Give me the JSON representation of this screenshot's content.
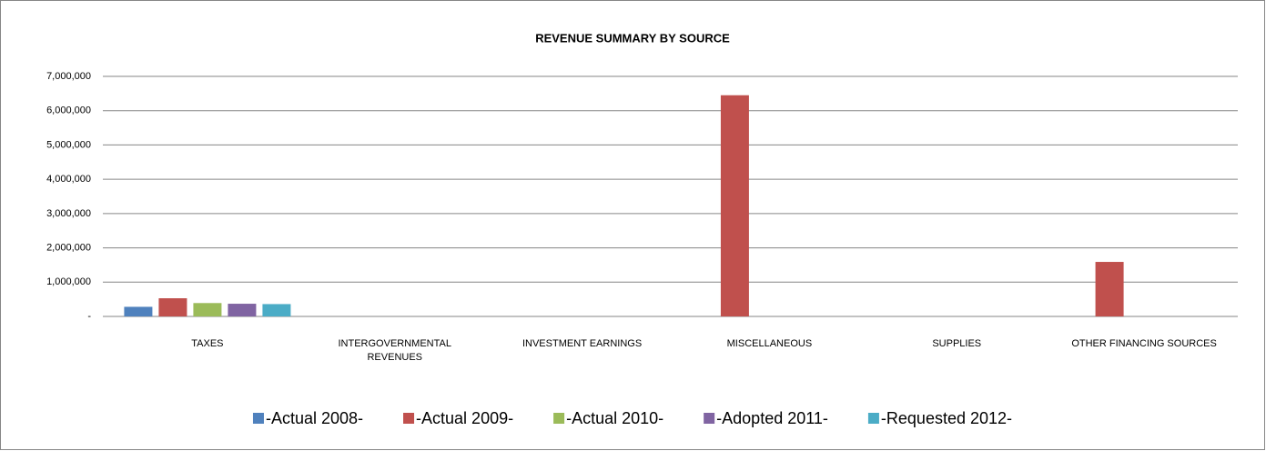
{
  "chart_data": {
    "type": "bar",
    "title": "REVENUE SUMMARY BY SOURCE",
    "categories": [
      "TAXES",
      "INTERGOVERNMENTAL REVENUES",
      "INVESTMENT EARNINGS",
      "MISCELLANEOUS",
      "SUPPLIES",
      "OTHER FINANCING SOURCES"
    ],
    "series": [
      {
        "name": "-Actual 2008-",
        "color": "#4f81bd",
        "values": [
          280000,
          0,
          0,
          0,
          0,
          0
        ]
      },
      {
        "name": "-Actual 2009-",
        "color": "#c0504d",
        "values": [
          530000,
          0,
          0,
          6450000,
          0,
          1590000
        ]
      },
      {
        "name": "-Actual 2010-",
        "color": "#9bbb59",
        "values": [
          390000,
          0,
          0,
          0,
          0,
          0
        ]
      },
      {
        "name": "-Adopted 2011-",
        "color": "#8064a2",
        "values": [
          370000,
          0,
          0,
          0,
          0,
          0
        ]
      },
      {
        "name": "-Requested 2012-",
        "color": "#4bacc6",
        "values": [
          360000,
          0,
          0,
          0,
          0,
          0
        ]
      }
    ],
    "ylim": [
      0,
      7000000
    ],
    "yticks": [
      {
        "value": 0,
        "label": "-"
      },
      {
        "value": 1000000,
        "label": "1,000,000"
      },
      {
        "value": 2000000,
        "label": "2,000,000"
      },
      {
        "value": 3000000,
        "label": "3,000,000"
      },
      {
        "value": 4000000,
        "label": "4,000,000"
      },
      {
        "value": 5000000,
        "label": "5,000,000"
      },
      {
        "value": 6000000,
        "label": "6,000,000"
      },
      {
        "value": 7000000,
        "label": "7,000,000"
      }
    ],
    "grid": true,
    "legend": "bottom"
  }
}
